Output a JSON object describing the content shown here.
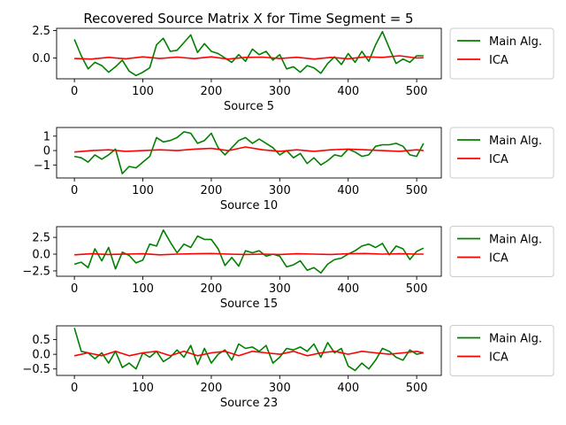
{
  "title": "Recovered Source Matrix X for Time Segment = 5",
  "colors": {
    "main": "#008000",
    "ica": "#ff0000",
    "axis": "#000000",
    "legend_edge": "#cccccc"
  },
  "chart_data": [
    {
      "type": "line",
      "xlabel": "Source 5",
      "xlim": [
        -26,
        536
      ],
      "ylim": [
        -1.9,
        2.7
      ],
      "xticks": [
        0,
        100,
        200,
        300,
        400,
        500
      ],
      "xtick_labels": [
        "0",
        "100",
        "200",
        "300",
        "400",
        "500"
      ],
      "yticks": [
        2.5,
        0.0
      ],
      "ytick_labels": [
        "2.5",
        "0.0"
      ],
      "legend": {
        "placement": "outside-right",
        "entries": [
          "Main Alg.",
          "ICA"
        ]
      },
      "series": [
        {
          "name": "Main Alg.",
          "color": "#008000",
          "x": [
            0,
            10,
            20,
            30,
            40,
            50,
            60,
            70,
            80,
            90,
            100,
            110,
            120,
            130,
            140,
            150,
            160,
            170,
            180,
            190,
            200,
            210,
            220,
            230,
            240,
            250,
            260,
            270,
            280,
            290,
            300,
            310,
            320,
            330,
            340,
            350,
            360,
            370,
            380,
            390,
            400,
            410,
            420,
            430,
            440,
            450,
            460,
            470,
            480,
            490,
            500,
            510
          ],
          "y": [
            1.7,
            0.2,
            -1.0,
            -0.4,
            -0.7,
            -1.3,
            -0.8,
            -0.2,
            -1.2,
            -1.6,
            -1.3,
            -0.9,
            1.2,
            1.8,
            0.6,
            0.7,
            1.4,
            2.1,
            0.5,
            1.3,
            0.6,
            0.4,
            0.0,
            -0.4,
            0.3,
            -0.3,
            0.8,
            0.3,
            0.6,
            -0.2,
            0.3,
            -1.0,
            -0.8,
            -1.3,
            -0.7,
            -0.9,
            -1.4,
            -0.5,
            0.1,
            -0.6,
            0.4,
            -0.4,
            0.6,
            -0.3,
            1.2,
            2.4,
            0.9,
            -0.5,
            -0.1,
            -0.4,
            0.2,
            0.2
          ]
        },
        {
          "name": "ICA",
          "color": "#ff0000",
          "x": [
            0,
            25,
            50,
            75,
            100,
            125,
            150,
            175,
            200,
            225,
            250,
            275,
            300,
            325,
            350,
            375,
            400,
            425,
            450,
            475,
            500,
            510
          ],
          "y": [
            -0.05,
            -0.1,
            0.05,
            -0.08,
            0.1,
            -0.05,
            0.08,
            -0.06,
            0.1,
            -0.1,
            0.05,
            0.08,
            -0.05,
            0.06,
            -0.1,
            0.05,
            -0.08,
            0.1,
            0.05,
            0.2,
            0.0,
            0.02
          ]
        }
      ]
    },
    {
      "type": "line",
      "xlabel": "Source 10",
      "xlim": [
        -26,
        536
      ],
      "ylim": [
        -1.9,
        1.6
      ],
      "xticks": [
        0,
        100,
        200,
        300,
        400,
        500
      ],
      "xtick_labels": [
        "0",
        "100",
        "200",
        "300",
        "400",
        "500"
      ],
      "yticks": [
        1,
        0,
        -1
      ],
      "ytick_labels": [
        "1",
        "0",
        "−1"
      ],
      "legend": {
        "placement": "outside-right",
        "entries": [
          "Main Alg.",
          "ICA"
        ]
      },
      "series": [
        {
          "name": "Main Alg.",
          "color": "#008000",
          "x": [
            0,
            10,
            20,
            30,
            40,
            50,
            60,
            70,
            80,
            90,
            100,
            110,
            120,
            130,
            140,
            150,
            160,
            170,
            180,
            190,
            200,
            210,
            220,
            230,
            240,
            250,
            260,
            270,
            280,
            290,
            300,
            310,
            320,
            330,
            340,
            350,
            360,
            370,
            380,
            390,
            400,
            410,
            420,
            430,
            440,
            450,
            460,
            470,
            480,
            490,
            500,
            510
          ],
          "y": [
            -0.4,
            -0.5,
            -0.8,
            -0.3,
            -0.6,
            -0.3,
            0.1,
            -1.6,
            -1.1,
            -1.2,
            -0.8,
            -0.4,
            0.9,
            0.6,
            0.7,
            0.9,
            1.3,
            1.2,
            0.5,
            0.7,
            1.2,
            0.2,
            -0.3,
            0.2,
            0.7,
            0.9,
            0.5,
            0.8,
            0.5,
            0.2,
            -0.3,
            0.0,
            -0.5,
            -0.2,
            -0.9,
            -0.5,
            -1.0,
            -0.7,
            -0.3,
            -0.4,
            0.1,
            -0.1,
            -0.4,
            -0.3,
            0.3,
            0.4,
            0.4,
            0.5,
            0.3,
            -0.3,
            -0.4,
            0.5
          ]
        },
        {
          "name": "ICA",
          "color": "#ff0000",
          "x": [
            0,
            25,
            50,
            75,
            100,
            125,
            150,
            175,
            200,
            225,
            250,
            275,
            300,
            325,
            350,
            375,
            400,
            425,
            450,
            475,
            500,
            510
          ],
          "y": [
            -0.1,
            0.0,
            0.05,
            -0.05,
            0.0,
            0.05,
            0.0,
            0.1,
            0.15,
            0.0,
            0.25,
            0.05,
            -0.05,
            0.05,
            -0.05,
            0.05,
            0.1,
            0.05,
            0.0,
            -0.05,
            0.05,
            0.0
          ]
        }
      ]
    },
    {
      "type": "line",
      "xlabel": "Source 15",
      "xlim": [
        -26,
        536
      ],
      "ylim": [
        -3.3,
        4.1
      ],
      "xticks": [
        0,
        100,
        200,
        300,
        400,
        500
      ],
      "xtick_labels": [
        "0",
        "100",
        "200",
        "300",
        "400",
        "500"
      ],
      "yticks": [
        2.5,
        0.0,
        -2.5
      ],
      "ytick_labels": [
        "2.5",
        "0.0",
        "−2.5"
      ],
      "legend": {
        "placement": "outside-right",
        "entries": [
          "Main Alg.",
          "ICA"
        ]
      },
      "series": [
        {
          "name": "Main Alg.",
          "color": "#008000",
          "x": [
            0,
            10,
            20,
            30,
            40,
            50,
            60,
            70,
            80,
            90,
            100,
            110,
            120,
            130,
            140,
            150,
            160,
            170,
            180,
            190,
            200,
            210,
            220,
            230,
            240,
            250,
            260,
            270,
            280,
            290,
            300,
            310,
            320,
            330,
            340,
            350,
            360,
            370,
            380,
            390,
            400,
            410,
            420,
            430,
            440,
            450,
            460,
            470,
            480,
            490,
            500,
            510
          ],
          "y": [
            -1.5,
            -1.2,
            -2.0,
            0.8,
            -1.0,
            1.0,
            -2.2,
            0.3,
            -0.2,
            -1.3,
            -0.9,
            1.5,
            1.2,
            3.6,
            1.8,
            0.2,
            1.5,
            1.0,
            2.7,
            2.2,
            2.2,
            0.8,
            -1.7,
            -0.5,
            -1.8,
            0.5,
            0.2,
            0.5,
            -0.3,
            0.0,
            -0.3,
            -1.9,
            -1.6,
            -1.0,
            -2.4,
            -2.0,
            -2.8,
            -1.5,
            -0.8,
            -0.6,
            0.0,
            0.5,
            1.2,
            1.5,
            1.0,
            1.6,
            -0.1,
            1.2,
            0.8,
            -0.8,
            0.4,
            0.9
          ]
        },
        {
          "name": "ICA",
          "color": "#ff0000",
          "x": [
            0,
            25,
            50,
            75,
            100,
            125,
            150,
            175,
            200,
            225,
            250,
            275,
            300,
            325,
            350,
            375,
            400,
            425,
            450,
            475,
            500,
            510
          ],
          "y": [
            -0.1,
            0.05,
            -0.05,
            0.0,
            0.05,
            -0.1,
            0.0,
            0.05,
            0.1,
            0.0,
            -0.05,
            0.0,
            -0.05,
            0.05,
            0.0,
            -0.05,
            0.05,
            0.1,
            0.0,
            0.05,
            0.0,
            0.0
          ]
        }
      ]
    },
    {
      "type": "line",
      "xlabel": "Source 23",
      "xlim": [
        -26,
        536
      ],
      "ylim": [
        -0.72,
        0.97
      ],
      "xticks": [
        0,
        100,
        200,
        300,
        400,
        500
      ],
      "xtick_labels": [
        "0",
        "100",
        "200",
        "300",
        "400",
        "500"
      ],
      "yticks": [
        0.5,
        0.0,
        -0.5
      ],
      "ytick_labels": [
        "0.5",
        "0.0",
        "−0.5"
      ],
      "legend": {
        "placement": "outside-right",
        "entries": [
          "Main Alg.",
          "ICA"
        ]
      },
      "series": [
        {
          "name": "Main Alg.",
          "color": "#008000",
          "x": [
            0,
            10,
            20,
            30,
            40,
            50,
            60,
            70,
            80,
            90,
            100,
            110,
            120,
            130,
            140,
            150,
            160,
            170,
            180,
            190,
            200,
            210,
            220,
            230,
            240,
            250,
            260,
            270,
            280,
            290,
            300,
            310,
            320,
            330,
            340,
            350,
            360,
            370,
            380,
            390,
            400,
            410,
            420,
            430,
            440,
            450,
            460,
            470,
            480,
            490,
            500,
            510
          ],
          "y": [
            0.9,
            0.1,
            0.05,
            -0.15,
            0.05,
            -0.3,
            0.1,
            -0.45,
            -0.3,
            -0.5,
            0.05,
            -0.1,
            0.1,
            -0.25,
            -0.1,
            0.15,
            -0.1,
            0.3,
            -0.35,
            0.2,
            -0.3,
            0.0,
            0.15,
            -0.2,
            0.35,
            0.2,
            0.25,
            0.1,
            0.3,
            -0.3,
            -0.1,
            0.2,
            0.15,
            0.25,
            0.1,
            0.35,
            -0.1,
            0.4,
            0.05,
            0.2,
            -0.4,
            -0.55,
            -0.3,
            -0.5,
            -0.2,
            0.2,
            0.1,
            -0.1,
            -0.2,
            0.15,
            0.0,
            0.05
          ]
        },
        {
          "name": "ICA",
          "color": "#ff0000",
          "x": [
            0,
            20,
            40,
            60,
            80,
            100,
            120,
            140,
            160,
            180,
            200,
            220,
            240,
            260,
            280,
            300,
            320,
            340,
            360,
            380,
            400,
            420,
            440,
            460,
            480,
            500,
            510
          ],
          "y": [
            -0.05,
            0.05,
            -0.05,
            0.1,
            -0.05,
            0.05,
            0.1,
            -0.05,
            0.1,
            -0.05,
            0.05,
            0.1,
            -0.05,
            0.1,
            0.05,
            0.0,
            0.1,
            -0.05,
            0.05,
            0.1,
            0.0,
            0.1,
            0.05,
            0.0,
            0.05,
            0.1,
            0.05
          ]
        }
      ]
    }
  ]
}
